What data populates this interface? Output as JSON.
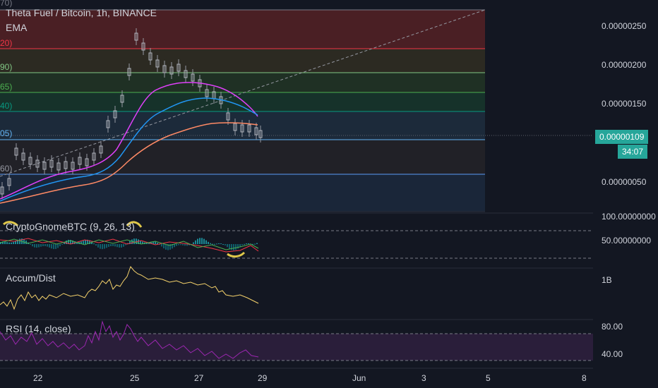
{
  "header": {
    "symbol_title": "Theta Fuel / Bitcoin, 1h, BINANCE",
    "indicator_ema": "EMA"
  },
  "fib_labels": [
    "70)",
    "20)",
    "90)",
    "65)",
    "40)",
    "05)",
    "60)"
  ],
  "price_axis": {
    "labels": [
      "0.00000250",
      "0.00000200",
      "0.00000150",
      "0.00000050"
    ],
    "current_price": "0.00000109",
    "countdown": "34:07"
  },
  "oscillators": {
    "gnome": {
      "label": "CryptoGnomeBTC (9, 26, 13)",
      "axis": [
        "100.00000000",
        "50.00000000"
      ]
    },
    "accum": {
      "label": "Accum/Dist",
      "axis": [
        "1B"
      ]
    },
    "rsi": {
      "label": "RSI (14, close)",
      "axis": [
        "80.00",
        "40.00"
      ]
    }
  },
  "time_axis": [
    "22",
    "25",
    "27",
    "29",
    "Jun",
    "3",
    "5",
    "8"
  ],
  "colors": {
    "background": "#131722",
    "up": "#26a69a",
    "ema_fast": "#e040fb",
    "ema_mid": "#2196f3",
    "ema_slow": "#ff8a65",
    "accum": "#f5d26b",
    "rsi": "#9c27b0"
  }
}
